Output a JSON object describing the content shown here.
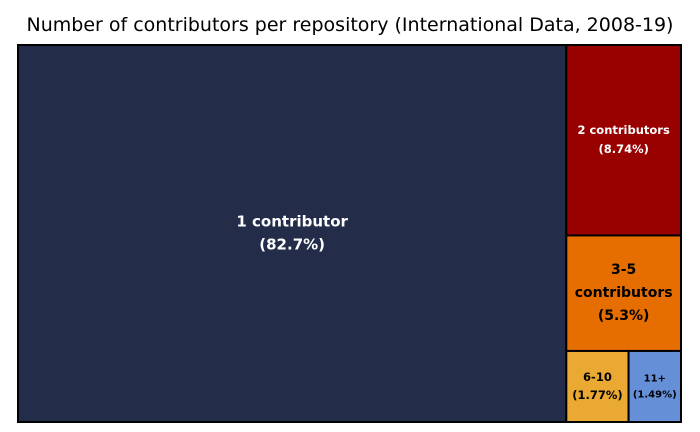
{
  "chart_data": {
    "type": "treemap",
    "title": "Number of contributors per repository (International Data, 2008-19)",
    "items": [
      {
        "label_lines": [
          "1 contributor",
          "(82.7%)"
        ],
        "value": 82.7,
        "color": "#232c49",
        "text_color": "#ffffff"
      },
      {
        "label_lines": [
          "2 contributors",
          "(8.74%)"
        ],
        "value": 8.74,
        "color": "#990000",
        "text_color": "#ffffff"
      },
      {
        "label_lines": [
          "3-5",
          "contributors",
          "(5.3%)"
        ],
        "value": 5.3,
        "color": "#e66e00",
        "text_color": "#000000"
      },
      {
        "label_lines": [
          "6-10",
          "(1.77%)"
        ],
        "value": 1.77,
        "color": "#e9a933",
        "text_color": "#000000"
      },
      {
        "label_lines": [
          "11+",
          "(1.49%)"
        ],
        "value": 1.49,
        "color": "#6590d8",
        "text_color": "#000000"
      }
    ]
  }
}
